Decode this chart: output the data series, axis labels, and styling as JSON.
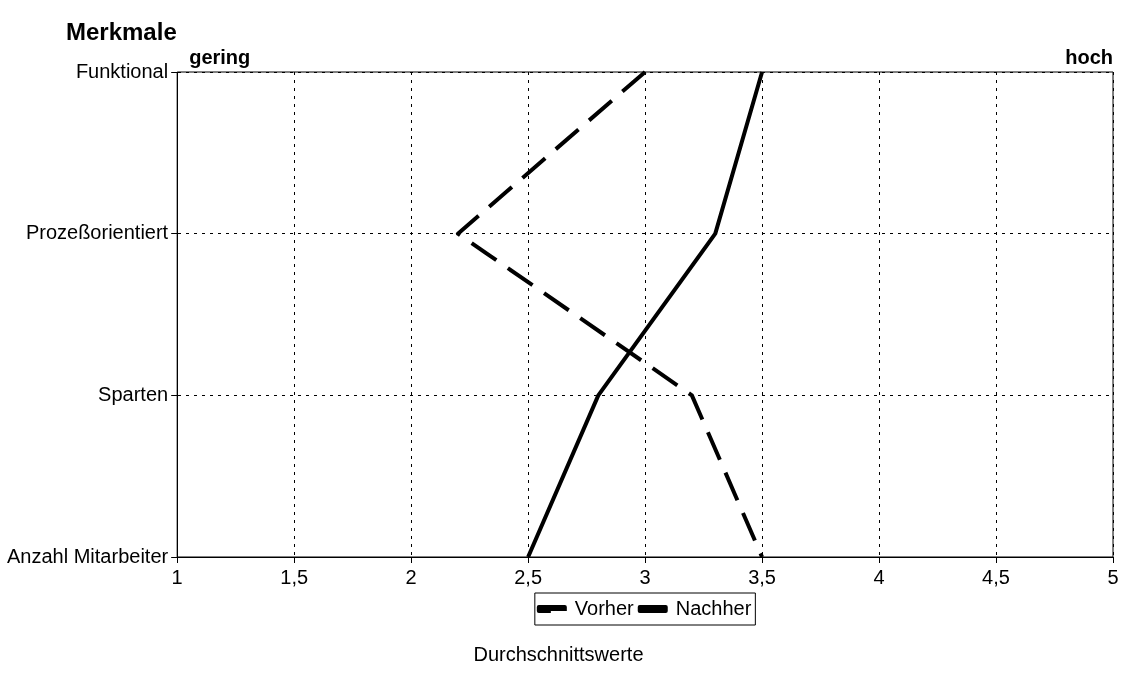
{
  "chart_data": {
    "type": "line",
    "orientation": "horizontal",
    "ylabel": "Merkmale",
    "xlabel": "Durchschnittswerte",
    "categories": [
      "Funktional",
      "Prozeßorientiert",
      "Sparten",
      "Anzahl Mitarbeiter"
    ],
    "series": [
      {
        "name": "Vorher",
        "color": "#000000",
        "line_style": "dashed",
        "values": [
          3,
          2.2,
          3.2,
          3.5
        ]
      },
      {
        "name": "Nachher",
        "color": "#000000",
        "line_style": "solid",
        "values": [
          3.5,
          3.3,
          2.8,
          2.5
        ]
      }
    ],
    "xlim": [
      1,
      5
    ],
    "xticks": [
      1,
      {
        "value": 1.5,
        "label": "1,5"
      },
      2,
      {
        "value": 2.5,
        "label": "2,5"
      },
      3,
      {
        "value": 3.5,
        "label": "3,5"
      },
      4,
      {
        "value": 4.5,
        "label": "4,5"
      },
      5
    ],
    "grid": true,
    "legend": "bottom",
    "marker": "none",
    "annotations": [
      "gering",
      "hoch"
    ]
  }
}
